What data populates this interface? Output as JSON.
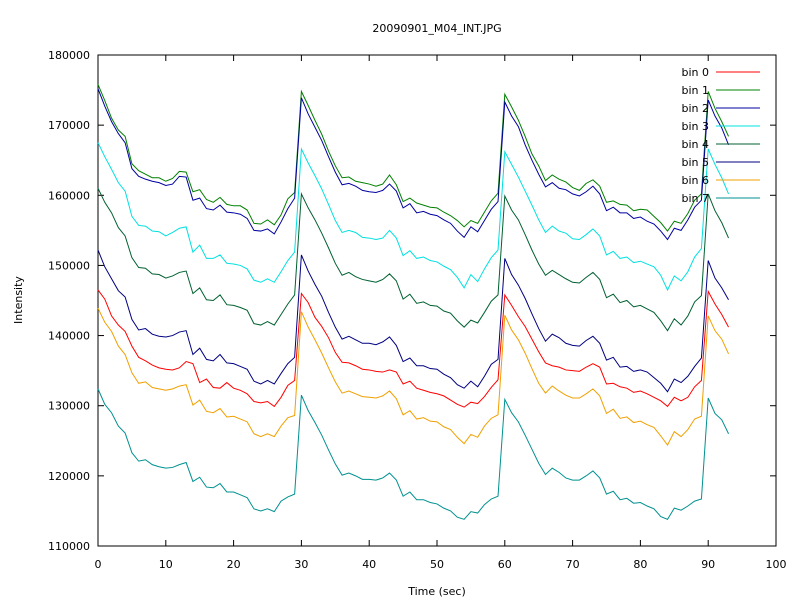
{
  "chart_data": {
    "type": "line",
    "title": "20090901_M04_INT.JPG",
    "xlabel": "Time (sec)",
    "ylabel": "Intensity",
    "xlim": [
      0,
      100
    ],
    "ylim": [
      110000,
      180000
    ],
    "xticks": [
      0,
      10,
      20,
      30,
      40,
      50,
      60,
      70,
      80,
      90,
      100
    ],
    "yticks": [
      110000,
      120000,
      130000,
      140000,
      150000,
      160000,
      170000,
      180000
    ],
    "grid": false,
    "legend_position": "top-right",
    "x": [
      0,
      1,
      2,
      3,
      4,
      5,
      6,
      7,
      8,
      9,
      10,
      11,
      12,
      13,
      14,
      15,
      16,
      17,
      18,
      19,
      20,
      21,
      22,
      23,
      24,
      25,
      26,
      27,
      28,
      29,
      30,
      31,
      32,
      33,
      34,
      35,
      36,
      37,
      38,
      39,
      40,
      41,
      42,
      43,
      44,
      45,
      46,
      47,
      48,
      49,
      50,
      51,
      52,
      53,
      54,
      55,
      56,
      57,
      58,
      59,
      60,
      61,
      62,
      63,
      64,
      65,
      66,
      67,
      68,
      69,
      70,
      71,
      72,
      73,
      74,
      75,
      76,
      77,
      78,
      79,
      80,
      81,
      82,
      83,
      84,
      85,
      86,
      87,
      88,
      89,
      90,
      91,
      92,
      93
    ],
    "series": [
      {
        "name": "bin 0",
        "color": "#ff0000",
        "values": [
          146500,
          145200,
          142800,
          141500,
          140600,
          138500,
          136900,
          136400,
          135800,
          135400,
          135200,
          135100,
          135400,
          136300,
          136000,
          133300,
          133800,
          132600,
          132500,
          133300,
          132500,
          132200,
          131700,
          130600,
          130400,
          130600,
          129900,
          131200,
          132900,
          133600,
          146000,
          144700,
          142600,
          141300,
          139700,
          137600,
          136200,
          136100,
          135700,
          135200,
          135100,
          134900,
          134800,
          135100,
          134800,
          133100,
          133500,
          132500,
          132200,
          131900,
          131700,
          131400,
          130800,
          130200,
          129800,
          130500,
          130300,
          131300,
          132600,
          133700,
          145800,
          144300,
          142700,
          141300,
          139500,
          137700,
          136100,
          135700,
          135500,
          135100,
          135000,
          134900,
          135500,
          136000,
          135500,
          133100,
          133200,
          132700,
          132500,
          131900,
          132100,
          131700,
          131200,
          130700,
          129900,
          131200,
          130700,
          131200,
          132700,
          133600,
          146300,
          144500,
          143000,
          141200
        ]
      },
      {
        "name": "bin 1",
        "color": "#008000",
        "values": [
          175800,
          173500,
          171000,
          169300,
          168400,
          164500,
          163500,
          163000,
          162500,
          162500,
          162000,
          162400,
          163400,
          163300,
          160500,
          160800,
          159400,
          159000,
          159700,
          158700,
          158500,
          158500,
          157900,
          156000,
          155900,
          156500,
          155800,
          157200,
          159500,
          160400,
          174800,
          172800,
          170700,
          168700,
          166300,
          164200,
          162500,
          162600,
          162000,
          161800,
          161600,
          161300,
          161600,
          162900,
          161500,
          159100,
          159600,
          158900,
          158600,
          158300,
          158200,
          157600,
          157100,
          156400,
          155500,
          156400,
          156000,
          157600,
          159200,
          160300,
          174400,
          172600,
          170700,
          168400,
          165900,
          164200,
          162100,
          162900,
          162300,
          161900,
          161100,
          160700,
          161700,
          162200,
          161300,
          159000,
          159200,
          158700,
          158600,
          157800,
          158000,
          157900,
          157000,
          156100,
          154900,
          156300,
          156000,
          157400,
          159300,
          160200,
          174800,
          172400,
          170500,
          168400
        ]
      },
      {
        "name": "bin 2",
        "color": "#0000a0",
        "values": [
          175200,
          172700,
          170500,
          168800,
          167500,
          163800,
          162700,
          162300,
          162000,
          161800,
          161400,
          161600,
          162700,
          162600,
          159300,
          159600,
          158100,
          157900,
          158600,
          157600,
          157500,
          157300,
          156700,
          155000,
          154900,
          155200,
          154500,
          156200,
          158100,
          159600,
          173900,
          171600,
          169700,
          167800,
          165500,
          163300,
          161500,
          161700,
          161300,
          160700,
          160500,
          160400,
          160700,
          161600,
          160600,
          158200,
          158800,
          157500,
          157700,
          157300,
          157100,
          156500,
          156000,
          154900,
          154000,
          155500,
          154800,
          156400,
          158000,
          159100,
          173300,
          171300,
          169800,
          167200,
          165000,
          163000,
          161200,
          161800,
          161000,
          160800,
          160200,
          159900,
          160500,
          161300,
          160200,
          157800,
          158300,
          157500,
          157500,
          156700,
          156900,
          156300,
          155900,
          154900,
          153700,
          155300,
          155000,
          156500,
          158300,
          159300,
          173600,
          171300,
          169600,
          167200
        ]
      },
      {
        "name": "bin 3",
        "color": "#00e0e0",
        "values": [
          167500,
          165500,
          163700,
          161800,
          160600,
          157000,
          155700,
          155600,
          154900,
          154800,
          154200,
          154700,
          155300,
          155500,
          151900,
          152900,
          151000,
          151000,
          151500,
          150300,
          150200,
          150000,
          149500,
          147900,
          147600,
          148100,
          147600,
          149100,
          150700,
          151900,
          166600,
          164600,
          162800,
          160900,
          158700,
          156400,
          154700,
          155000,
          154700,
          154000,
          153900,
          153700,
          153900,
          155000,
          153900,
          151400,
          152100,
          151000,
          151200,
          150700,
          150500,
          149900,
          149400,
          148300,
          146800,
          148700,
          147700,
          149500,
          151100,
          152200,
          166200,
          164400,
          162600,
          160600,
          158600,
          156500,
          154700,
          155600,
          154900,
          154600,
          153800,
          153700,
          154400,
          155200,
          154200,
          151500,
          152000,
          151000,
          151200,
          150400,
          150600,
          150200,
          149800,
          148600,
          146500,
          148500,
          147800,
          149100,
          151200,
          152400,
          166600,
          164400,
          162500,
          160200
        ]
      },
      {
        "name": "bin 4",
        "color": "#006030",
        "values": [
          161000,
          159000,
          157500,
          155400,
          154200,
          151100,
          149700,
          149600,
          148800,
          148700,
          148200,
          148500,
          149000,
          149200,
          146000,
          146800,
          145100,
          145000,
          145800,
          144400,
          144300,
          144000,
          143600,
          141700,
          141500,
          142000,
          141500,
          143000,
          144500,
          145800,
          160200,
          158200,
          156500,
          154600,
          152500,
          150300,
          148600,
          149000,
          148400,
          148000,
          147800,
          147600,
          148000,
          148800,
          147800,
          145200,
          145900,
          144600,
          144800,
          144300,
          144200,
          143500,
          143200,
          142100,
          141200,
          142200,
          141800,
          143300,
          144900,
          145800,
          159900,
          157900,
          156500,
          154400,
          152200,
          150200,
          148600,
          149300,
          148700,
          148100,
          147600,
          147500,
          148300,
          149000,
          148000,
          145400,
          145900,
          144700,
          145000,
          144100,
          144300,
          143800,
          143300,
          142100,
          140700,
          142400,
          141500,
          142800,
          144800,
          145700,
          160200,
          157800,
          156100,
          153900
        ]
      },
      {
        "name": "bin 5",
        "color": "#000080",
        "values": [
          152200,
          149800,
          148100,
          146400,
          145500,
          142300,
          140800,
          141000,
          140200,
          139900,
          139800,
          140000,
          140500,
          140700,
          137300,
          138200,
          136600,
          136400,
          137300,
          136100,
          136000,
          135600,
          135200,
          133500,
          133100,
          133600,
          133100,
          134600,
          136000,
          136900,
          151500,
          149200,
          147300,
          145600,
          143300,
          141200,
          139500,
          139900,
          139400,
          138900,
          138900,
          138700,
          139100,
          139800,
          138600,
          136300,
          136800,
          135700,
          135700,
          135300,
          135200,
          134500,
          134000,
          133000,
          132500,
          133500,
          132700,
          134200,
          135900,
          136600,
          151000,
          148700,
          147200,
          145300,
          143100,
          141000,
          139200,
          140200,
          139700,
          138900,
          138600,
          138500,
          139300,
          139900,
          138900,
          136500,
          136900,
          135500,
          135600,
          134900,
          135100,
          134800,
          134000,
          133200,
          132000,
          133800,
          133300,
          134200,
          135600,
          136800,
          150700,
          148200,
          146800,
          145100
        ]
      },
      {
        "name": "bin 6",
        "color": "#f0a000",
        "values": [
          143900,
          141900,
          140600,
          138500,
          137300,
          134700,
          133200,
          133400,
          132600,
          132400,
          132200,
          132400,
          132800,
          133000,
          130100,
          130800,
          129200,
          129000,
          129600,
          128400,
          128500,
          128100,
          127700,
          126000,
          125600,
          126000,
          125600,
          127100,
          128300,
          128600,
          143400,
          141200,
          139400,
          137500,
          135400,
          133400,
          131800,
          132100,
          131700,
          131300,
          131200,
          131100,
          131400,
          132100,
          131000,
          128700,
          129300,
          128100,
          128300,
          127800,
          127700,
          127000,
          126600,
          125500,
          124600,
          125900,
          125500,
          127100,
          128200,
          128700,
          142900,
          140800,
          139400,
          137500,
          135300,
          133200,
          131800,
          132800,
          132100,
          131500,
          131100,
          131100,
          131700,
          132400,
          131400,
          128900,
          129500,
          128200,
          128400,
          127600,
          127800,
          127300,
          126900,
          125700,
          124400,
          126300,
          125600,
          126600,
          128100,
          128500,
          142800,
          140700,
          139500,
          137400
        ]
      },
      {
        "name": "bin 7",
        "color": "#009090",
        "values": [
          132400,
          130200,
          129000,
          127100,
          126100,
          123300,
          122100,
          122300,
          121600,
          121300,
          121100,
          121200,
          121600,
          121900,
          119200,
          119800,
          118400,
          118300,
          118900,
          117700,
          117700,
          117300,
          116900,
          115300,
          115000,
          115300,
          114900,
          116400,
          117000,
          117400,
          131500,
          129300,
          127600,
          125800,
          123700,
          121700,
          120100,
          120400,
          120000,
          119500,
          119500,
          119400,
          119700,
          120400,
          119400,
          117100,
          117700,
          116600,
          116600,
          116200,
          116000,
          115400,
          115000,
          114100,
          113800,
          114900,
          114700,
          115900,
          116700,
          117100,
          130900,
          129000,
          127700,
          125800,
          123800,
          121800,
          120200,
          121100,
          120500,
          119700,
          119400,
          119400,
          120000,
          120700,
          119700,
          117400,
          117800,
          116600,
          116800,
          116100,
          116200,
          115700,
          115300,
          114200,
          113800,
          115400,
          115100,
          115700,
          116400,
          116700,
          131100,
          128900,
          128000,
          126000
        ]
      }
    ]
  }
}
